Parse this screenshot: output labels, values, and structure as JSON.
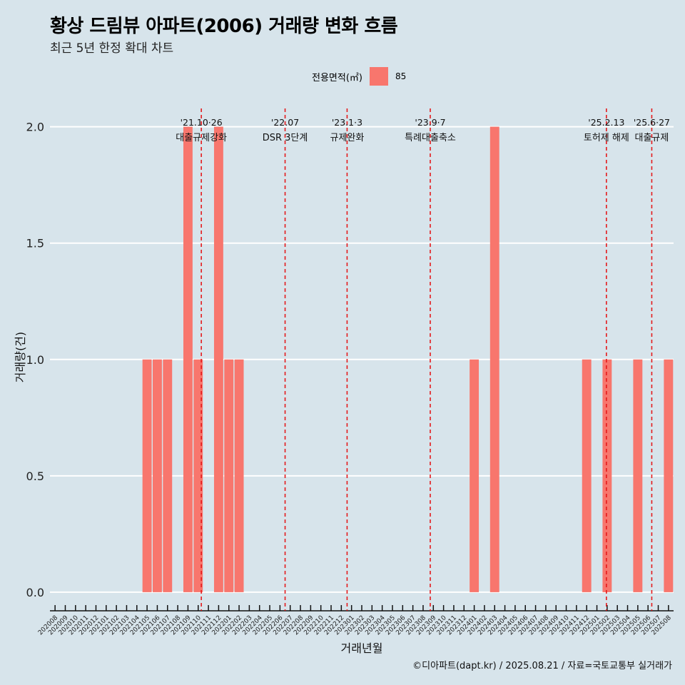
{
  "title": "황상 드림뷰 아파트(2006) 거래량 변화 흐름",
  "subtitle": "최근 5년 한정 확대 차트",
  "caption": "©디아파트(dapt.kr) / 2025.08.21 / 자료=국토교통부 실거래가",
  "colors": {
    "background": "#d7e4eb",
    "bar": "#f8766d",
    "grid": "#ffffff",
    "vline": "#e41a1c",
    "text": "#000000"
  },
  "chart_data": {
    "type": "bar",
    "xlabel": "거래년월",
    "ylabel": "거래량(건)",
    "ylim": [
      -0.08,
      2.1
    ],
    "yticks": [
      0.0,
      0.5,
      1.0,
      1.5,
      2.0
    ],
    "ytick_labels": [
      "0.0",
      "0.5",
      "1.0",
      "1.5",
      "2.0"
    ],
    "legend_title": "전용면적(㎡)",
    "legend_position": "top",
    "categories": [
      "202008",
      "202009",
      "202010",
      "202011",
      "202012",
      "202101",
      "202102",
      "202103",
      "202104",
      "202105",
      "202106",
      "202107",
      "202108",
      "202109",
      "202110",
      "202111",
      "202112",
      "202201",
      "202202",
      "202203",
      "202204",
      "202205",
      "202206",
      "202207",
      "202208",
      "202209",
      "202210",
      "202211",
      "202212",
      "202301",
      "202302",
      "202303",
      "202304",
      "202305",
      "202306",
      "202307",
      "202308",
      "202309",
      "202310",
      "202311",
      "202312",
      "202401",
      "202402",
      "202403",
      "202404",
      "202405",
      "202406",
      "202407",
      "202408",
      "202409",
      "202410",
      "202411",
      "202412",
      "202501",
      "202502",
      "202503",
      "202504",
      "202505",
      "202506",
      "202507",
      "202508"
    ],
    "series": [
      {
        "name": "85",
        "color": "#f8766d",
        "values": [
          0,
          0,
          0,
          0,
          0,
          0,
          0,
          0,
          0,
          1,
          1,
          1,
          0,
          2,
          1,
          0,
          2,
          1,
          1,
          0,
          0,
          0,
          0,
          0,
          0,
          0,
          0,
          0,
          0,
          0,
          0,
          0,
          0,
          0,
          0,
          0,
          0,
          0,
          0,
          0,
          0,
          1,
          0,
          2,
          0,
          0,
          0,
          0,
          0,
          0,
          0,
          0,
          1,
          0,
          1,
          0,
          0,
          1,
          0,
          0,
          1
        ]
      }
    ],
    "annotations": [
      {
        "date": "2021-10-26",
        "line1": "'21.10·26",
        "line2": "대출규제강화"
      },
      {
        "date": "2022-07-01",
        "line1": "'22.07",
        "line2": "DSR 3단계"
      },
      {
        "date": "2023-01-03",
        "line1": "'23.1·3",
        "line2": "규제완화"
      },
      {
        "date": "2023-09-07",
        "line1": "'23.9·7",
        "line2": "특례대출축소"
      },
      {
        "date": "2025-02-13",
        "line1": "'25.2.13",
        "line2": "토허제 해제"
      },
      {
        "date": "2025-06-27",
        "line1": "'25.6·27",
        "line2": "대출규제"
      }
    ]
  }
}
